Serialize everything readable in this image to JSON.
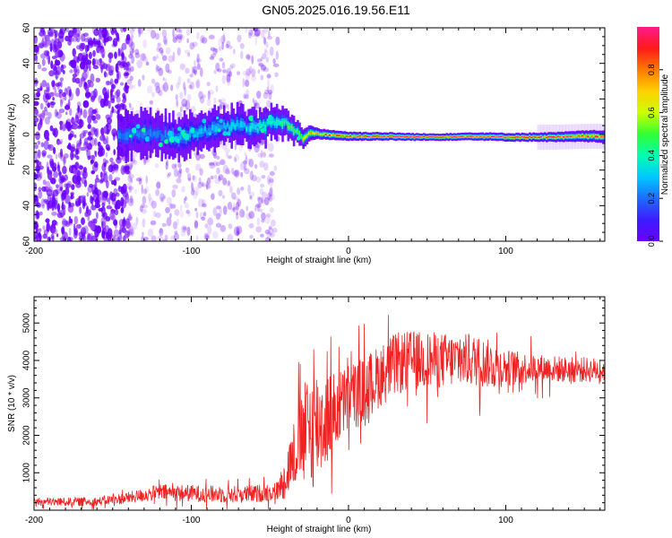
{
  "title": "GN05.2025.016.19.56.E11",
  "chart_data": [
    {
      "type": "heatmap",
      "xlabel": "Height of straight line (km)",
      "ylabel": "Frequency (Hz)",
      "xlim": [
        -200,
        163
      ],
      "ylim": [
        -60,
        60
      ],
      "xticks": [
        -200,
        -100,
        0,
        100
      ],
      "yticks": [
        60,
        40,
        20,
        0,
        -20,
        -40,
        -60
      ],
      "ytick_labels": [
        "60",
        "40",
        "20",
        "0",
        "20",
        "40",
        "60"
      ],
      "colorbar": {
        "label": "Normalized spectral amplitude",
        "range": [
          0,
          1
        ],
        "ticks": [
          0.0,
          0.2,
          0.4,
          0.6,
          0.8
        ],
        "tick_labels": [
          "0.0",
          "0.2",
          "0.4",
          "0.6",
          "0.8"
        ],
        "colormap": [
          "#6a00ff",
          "#3b1cff",
          "#1e6cff",
          "#00c8ff",
          "#00ffb0",
          "#33ff33",
          "#ccff00",
          "#ffd000",
          "#ff7a00",
          "#ff1a1a",
          "#ff1a8c"
        ]
      },
      "ridge": [
        [
          -145,
          0
        ],
        [
          -130,
          1
        ],
        [
          -120,
          0
        ],
        [
          -110,
          -2
        ],
        [
          -100,
          1
        ],
        [
          -90,
          2
        ],
        [
          -80,
          4
        ],
        [
          -70,
          6
        ],
        [
          -60,
          3
        ],
        [
          -50,
          6
        ],
        [
          -42,
          7
        ],
        [
          -35,
          3
        ],
        [
          -30,
          -3
        ],
        [
          -25,
          1
        ],
        [
          -15,
          0
        ],
        [
          0,
          -1
        ],
        [
          20,
          -1
        ],
        [
          50,
          -1.5
        ],
        [
          80,
          -1
        ],
        [
          100,
          -1.5
        ],
        [
          130,
          -1.5
        ],
        [
          150,
          -1
        ],
        [
          163,
          -1
        ]
      ],
      "band_halfwidth": [
        [
          -145,
          12
        ],
        [
          -100,
          11
        ],
        [
          -50,
          9
        ],
        [
          -35,
          7
        ],
        [
          -20,
          3
        ],
        [
          0,
          2.5
        ],
        [
          50,
          2
        ],
        [
          120,
          2.5
        ],
        [
          163,
          3.5
        ]
      ],
      "peak_intensity": [
        [
          -145,
          0.2
        ],
        [
          -120,
          0.25
        ],
        [
          -90,
          0.3
        ],
        [
          -60,
          0.35
        ],
        [
          -40,
          0.45
        ],
        [
          -20,
          0.75
        ],
        [
          0,
          0.85
        ],
        [
          40,
          0.95
        ],
        [
          80,
          0.85
        ],
        [
          120,
          0.9
        ],
        [
          163,
          0.8
        ]
      ],
      "noise": {
        "x_extent": [
          -200,
          -40
        ],
        "density": "dense for x < -140, sparse to -40"
      }
    },
    {
      "type": "line",
      "xlabel": "Height of straight line (km)",
      "ylabel": "SNR (10 * v/v)",
      "xlim": [
        -200,
        163
      ],
      "ylim": [
        0,
        5700
      ],
      "xticks": [
        -200,
        -100,
        0,
        100
      ],
      "yticks": [
        1000,
        2000,
        3000,
        4000,
        5000
      ],
      "color": "#ee2222",
      "envelope": {
        "x": [
          -200,
          -160,
          -140,
          -120,
          -100,
          -80,
          -60,
          -45,
          -40,
          -35,
          -30,
          -25,
          -20,
          -15,
          -10,
          -5,
          0,
          10,
          20,
          30,
          40,
          60,
          80,
          90,
          100,
          120,
          140,
          163
        ],
        "mean": [
          220,
          230,
          330,
          480,
          450,
          420,
          430,
          520,
          900,
          1500,
          1900,
          2100,
          2300,
          2400,
          2600,
          2800,
          3000,
          3200,
          3600,
          3900,
          4000,
          4000,
          4000,
          3900,
          3800,
          3800,
          3750,
          3750
        ],
        "spread": [
          110,
          120,
          160,
          220,
          230,
          230,
          240,
          260,
          600,
          900,
          1200,
          1700,
          1600,
          1300,
          1100,
          1000,
          950,
          900,
          850,
          850,
          800,
          750,
          700,
          650,
          500,
          380,
          350,
          330
        ]
      }
    }
  ]
}
